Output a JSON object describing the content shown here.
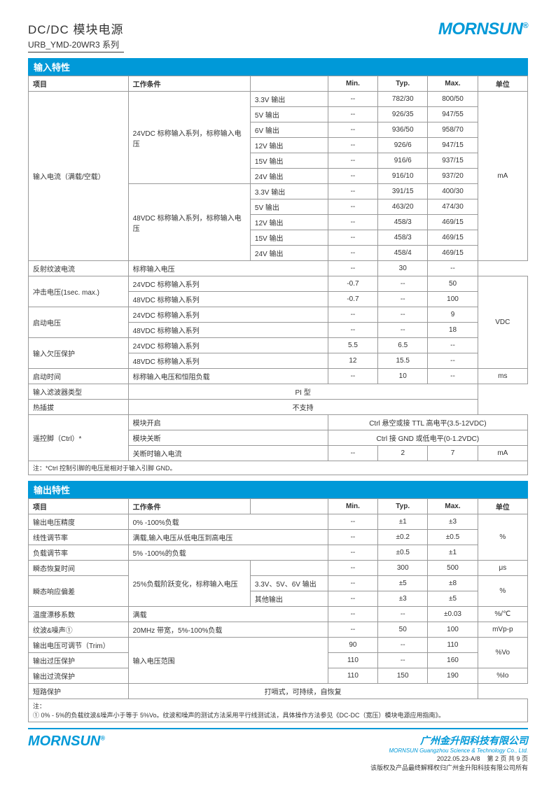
{
  "header": {
    "title1": "DC/DC 模块电源",
    "title2": "URB_YMD-20WR3 系列",
    "logo": "MORNSUN",
    "logo_sup": "®"
  },
  "section1": {
    "title": "输入特性",
    "columns": [
      "项目",
      "工作条件",
      "",
      "Min.",
      "Typ.",
      "Max.",
      "单位"
    ],
    "rows": [
      {
        "item": "输入电流（满载/空载）",
        "item_rs": 11,
        "cond": "24VDC 标称输入系列，标称输入电压",
        "cond_rs": 6,
        "sub": "3.3V 输出",
        "min": "--",
        "typ": "782/30",
        "max": "800/50",
        "unit": "mA",
        "unit_rs": 11
      },
      {
        "sub": "5V 输出",
        "min": "--",
        "typ": "926/35",
        "max": "947/55"
      },
      {
        "sub": "6V 输出",
        "min": "--",
        "typ": "936/50",
        "max": "958/70"
      },
      {
        "sub": "12V 输出",
        "min": "--",
        "typ": "926/6",
        "max": "947/15"
      },
      {
        "sub": "15V 输出",
        "min": "--",
        "typ": "916/6",
        "max": "937/15"
      },
      {
        "sub": "24V 输出",
        "min": "--",
        "typ": "916/10",
        "max": "937/20"
      },
      {
        "cond": "48VDC 标称输入系列，标称输入电压",
        "cond_rs": 5,
        "sub": "3.3V 输出",
        "min": "--",
        "typ": "391/15",
        "max": "400/30"
      },
      {
        "sub": "5V 输出",
        "min": "--",
        "typ": "463/20",
        "max": "474/30"
      },
      {
        "sub": "12V 输出",
        "min": "--",
        "typ": "458/3",
        "max": "469/15"
      },
      {
        "sub": "15V 输出",
        "min": "--",
        "typ": "458/3",
        "max": "469/15"
      },
      {
        "sub": "24V 输出",
        "min": "--",
        "typ": "458/4",
        "max": "469/15"
      },
      {
        "item": "反射纹波电流",
        "cond": "标称输入电压",
        "cond_cs": 2,
        "min": "--",
        "typ": "30",
        "max": "--"
      },
      {
        "item": "冲击电压(1sec. max.)",
        "item_rs": 2,
        "cond": "24VDC 标称输入系列",
        "cond_cs": 2,
        "min": "-0.7",
        "typ": "--",
        "max": "50",
        "unit": "VDC",
        "unit_rs": 6
      },
      {
        "cond": "48VDC 标称输入系列",
        "cond_cs": 2,
        "min": "-0.7",
        "typ": "--",
        "max": "100"
      },
      {
        "item": "启动电压",
        "item_rs": 2,
        "cond": "24VDC 标称输入系列",
        "cond_cs": 2,
        "min": "--",
        "typ": "--",
        "max": "9"
      },
      {
        "cond": "48VDC 标称输入系列",
        "cond_cs": 2,
        "min": "--",
        "typ": "--",
        "max": "18"
      },
      {
        "item": "输入欠压保护",
        "item_rs": 2,
        "cond": "24VDC 标称输入系列",
        "cond_cs": 2,
        "min": "5.5",
        "typ": "6.5",
        "max": "--"
      },
      {
        "cond": "48VDC 标称输入系列",
        "cond_cs": 2,
        "min": "12",
        "typ": "15.5",
        "max": "--"
      },
      {
        "item": "启动时间",
        "cond": "标称输入电压和恒阻负载",
        "cond_cs": 2,
        "min": "--",
        "typ": "10",
        "max": "--",
        "unit": "ms"
      },
      {
        "item": "输入滤波器类型",
        "span": "PI 型",
        "span_cs": 5
      },
      {
        "item": "热插拔",
        "span": "不支持",
        "span_cs": 5
      },
      {
        "item": "遥控脚（Ctrl）*",
        "item_rs": 3,
        "cond": "模块开启",
        "cond_cs": 2,
        "span": "Ctrl 悬空或接 TTL 高电平(3.5-12VDC)",
        "span_cs": 4
      },
      {
        "cond": "模块关断",
        "cond_cs": 2,
        "span": "Ctrl 接 GND 或低电平(0-1.2VDC)",
        "span_cs": 4
      },
      {
        "cond": "关断时输入电流",
        "cond_cs": 2,
        "min": "--",
        "typ": "2",
        "max": "7",
        "unit": "mA"
      }
    ],
    "note": "注：*Ctrl 控制引脚的电压是相对于输入引脚 GND。"
  },
  "section2": {
    "title": "输出特性",
    "columns": [
      "项目",
      "工作条件",
      "",
      "Min.",
      "Typ.",
      "Max.",
      "单位"
    ],
    "rows": [
      {
        "item": "输出电压精度",
        "cond": "0% -100%负载",
        "cond_cs": 2,
        "min": "--",
        "typ": "±1",
        "max": "±3",
        "unit": "%",
        "unit_rs": 3
      },
      {
        "item": "线性调节率",
        "cond": "满载,输入电压从低电压到高电压",
        "cond_cs": 2,
        "min": "--",
        "typ": "±0.2",
        "max": "±0.5"
      },
      {
        "item": "负载调节率",
        "cond": "5% -100%的负载",
        "cond_cs": 2,
        "min": "--",
        "typ": "±0.5",
        "max": "±1"
      },
      {
        "item": "瞬态恢复时间",
        "cond": "25%负载阶跃变化，标称输入电压",
        "cond_rs": 3,
        "cond_cs": 1,
        "sub": "",
        "min": "--",
        "typ": "300",
        "max": "500",
        "unit": "μs"
      },
      {
        "item": "瞬态响应偏差",
        "item_rs": 2,
        "sub": "3.3V、5V、6V 输出",
        "min": "--",
        "typ": "±5",
        "max": "±8",
        "unit": "%",
        "unit_rs": 2
      },
      {
        "sub": "其他输出",
        "min": "--",
        "typ": "±3",
        "max": "±5"
      },
      {
        "item": "温度漂移系数",
        "cond": "满载",
        "cond_cs": 2,
        "min": "--",
        "typ": "--",
        "max": "±0.03",
        "unit": "%/℃"
      },
      {
        "item": "纹波&噪声①",
        "cond": "20MHz 带宽，5%-100%负载",
        "cond_cs": 2,
        "min": "--",
        "typ": "50",
        "max": "100",
        "unit": "mVp-p"
      },
      {
        "item": "输出电压可调节（Trim）",
        "cond": "输入电压范围",
        "cond_rs": 3,
        "cond_cs": 2,
        "min": "90",
        "typ": "--",
        "max": "110",
        "unit": "%Vo",
        "unit_rs": 2
      },
      {
        "item": "输出过压保护",
        "min": "110",
        "typ": "--",
        "max": "160"
      },
      {
        "item": "输出过流保护",
        "min": "110",
        "typ": "150",
        "max": "190",
        "unit": "%Io"
      },
      {
        "item": "短路保护",
        "span": "打嗝式，可持续，自恢复",
        "span_cs": 5
      }
    ],
    "note": "注：\n① 0% - 5%的负载纹波&噪声小于等于 5%Vo。纹波和噪声的测试方法采用平行线测试法，具体操作方法参见《DC-DC（宽压）模块电源应用指南》。"
  },
  "footer": {
    "logo": "MORNSUN",
    "logo_sup": "®",
    "company": "广州金升阳科技有限公司",
    "company_en": "MORNSUN Guangzhou Science & Technology Co., Ltd.",
    "date": "2022.05.23-A/8",
    "page": "第 2 页 共 9 页",
    "copyright": "该版权及产品最终解释权归广州金升阳科技有限公司所有"
  },
  "colors": {
    "brand": "#0099d8",
    "border": "#999999",
    "text": "#333333"
  }
}
